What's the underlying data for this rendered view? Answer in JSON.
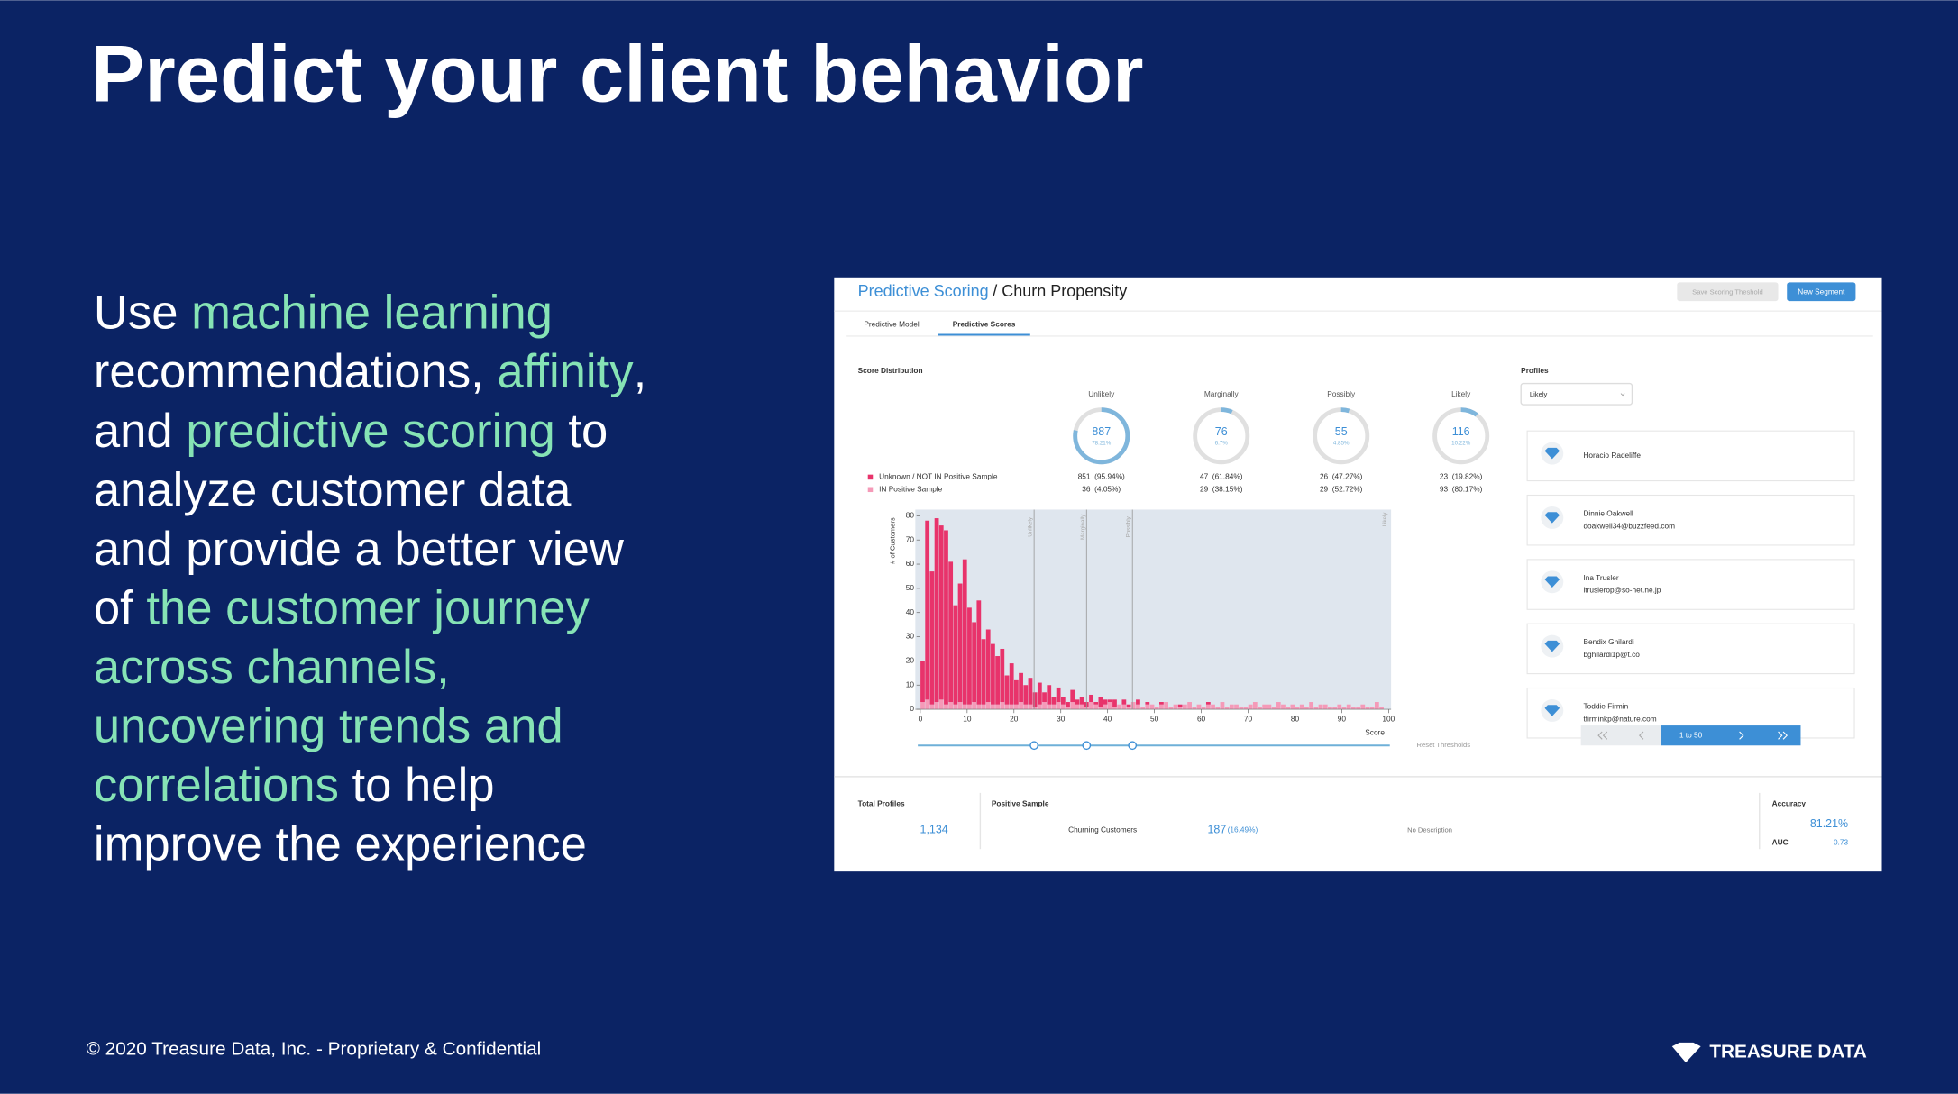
{
  "slide": {
    "title": "Predict your client behavior",
    "highlight_color": "#86e3b5",
    "text_color": "#ffffff",
    "body": {
      "lines": [
        [
          {
            "text": "Use ",
            "highlight": false
          },
          {
            "text": "machine learning",
            "highlight": true
          }
        ],
        [
          {
            "text": "recommendations, ",
            "highlight": false
          },
          {
            "text": "affinity",
            "highlight": true
          },
          {
            "text": ",",
            "highlight": false
          }
        ],
        [
          {
            "text": "and ",
            "highlight": false
          },
          {
            "text": "predictive scoring",
            "highlight": true
          },
          {
            "text": " to",
            "highlight": false
          }
        ],
        [
          {
            "text": "analyze customer data",
            "highlight": false
          }
        ],
        [
          {
            "text": "and provide a better view",
            "highlight": false
          }
        ],
        [
          {
            "text": "of ",
            "highlight": false
          },
          {
            "text": "the customer journey",
            "highlight": true
          }
        ],
        [
          {
            "text": "across channels,",
            "highlight": true
          }
        ],
        [
          {
            "text": "uncovering trends and",
            "highlight": true
          }
        ],
        [
          {
            "text": "correlations",
            "highlight": true
          },
          {
            "text": " to help",
            "highlight": false
          }
        ],
        [
          {
            "text": "improve the experience",
            "highlight": false
          }
        ]
      ]
    },
    "footer": "© 2020 Treasure Data, Inc. - Proprietary & Confidential",
    "logo": "TREASURE DATA"
  },
  "app": {
    "breadcrumb": {
      "parent": "Predictive Scoring",
      "current": "/ Churn Propensity"
    },
    "buttons": {
      "save": "Save Scoring Theshold",
      "new": "New Segment"
    },
    "tabs": [
      "Predictive Model",
      "Predictive Scores"
    ],
    "section": "Score Distribution",
    "scores": {
      "columns": [
        {
          "label": "Unlikely",
          "count": 887,
          "pct": {
            "value": 78.21,
            "label": "78.21%"
          },
          "unknown": "851  (95.94%)",
          "positive": "36  (4.05%)"
        },
        {
          "label": "Marginally",
          "count": 76,
          "pct": {
            "value": 6.7,
            "label": "6.7%"
          },
          "unknown": "47  (61.84%)",
          "positive": "29  (38.15%)"
        },
        {
          "label": "Possibly",
          "count": 55,
          "pct": {
            "value": 4.85,
            "label": "4.85%"
          },
          "unknown": "26  (47.27%)",
          "positive": "29  (52.72%)"
        },
        {
          "label": "Likely",
          "count": 116,
          "pct": {
            "value": 10.22,
            "label": "10.22%"
          },
          "unknown": "23  (19.82%)",
          "positive": "93  (80.17%)"
        }
      ]
    },
    "reset": "Reset Thresholds",
    "profiles": {
      "title": "Profiles",
      "filter": "Likely",
      "items": [
        {
          "name": "Horacio Radeliffe"
        },
        {
          "name": "Dinnie Oakwell",
          "email": "doakwell34@buzzfeed.com"
        },
        {
          "name": "Ina Trusler",
          "email": "itruslerop@so-net.ne.jp"
        },
        {
          "name": "Bendix Ghilardi",
          "email": "bghilardi1p@t.co"
        },
        {
          "name": "Toddie Firmin",
          "email": "tfirminkp@nature.com"
        }
      ],
      "page": "1 to 50"
    },
    "summary": {
      "total_label": "Total Profiles",
      "total": "1,134",
      "positive_label": "Positive Sample",
      "churn_label": "Churning Customers",
      "churn_count": 187,
      "churn_pct": "(16.49%)",
      "description": "No Description",
      "accuracy_label": "Accuracy",
      "accuracy": "81.21%",
      "auc_label": "AUC",
      "auc": 0.73
    }
  },
  "chart_data": {
    "type": "histogram",
    "stacked": true,
    "x_label": "Score",
    "y_label": "# of Customers",
    "bins": [
      0,
      1,
      2,
      3,
      4,
      5,
      6,
      7,
      8,
      9,
      10,
      11,
      12,
      13,
      14,
      15,
      16,
      17,
      18,
      19,
      20,
      21,
      22,
      23,
      24,
      25,
      26,
      27,
      28,
      29,
      30,
      31,
      32,
      33,
      34,
      35,
      36,
      37,
      38,
      39,
      40,
      41,
      42,
      43,
      44,
      45,
      46,
      47,
      48,
      49,
      50,
      51,
      52,
      53,
      54,
      55,
      56,
      57,
      58,
      59,
      60,
      61,
      62,
      63,
      64,
      65,
      66,
      67,
      68,
      69,
      70,
      71,
      72,
      73,
      74,
      75,
      76,
      77,
      78,
      79,
      80,
      81,
      82,
      83,
      84,
      85,
      86,
      87,
      88,
      89,
      90,
      91,
      92,
      93,
      94,
      95,
      96,
      97,
      98,
      99,
      100
    ],
    "series": [
      {
        "name": "Unknown / NOT IN Positive Sample",
        "color": "#e8336b",
        "values": [
          17,
          74,
          55,
          76,
          72,
          72,
          58,
          41,
          49,
          60,
          40,
          33,
          43,
          27,
          30,
          25,
          20,
          22,
          12,
          17,
          10,
          12,
          8,
          11,
          6,
          9,
          4,
          8,
          3,
          6,
          3,
          2,
          5,
          2,
          3,
          2,
          3,
          1,
          4,
          2,
          1,
          3,
          0,
          2,
          1,
          0,
          2,
          0,
          1,
          0,
          0,
          1,
          0,
          0,
          0,
          1,
          0,
          0,
          0,
          0,
          0,
          1,
          0,
          0,
          0,
          0,
          0,
          0,
          0,
          0,
          0,
          0,
          0,
          0,
          0,
          0,
          0,
          0,
          0,
          0,
          0,
          0,
          0,
          0,
          0,
          0,
          0,
          0,
          0,
          0,
          0,
          0,
          0,
          0,
          0,
          0,
          0,
          0,
          0,
          0
        ]
      },
      {
        "name": "IN Positive Sample",
        "color": "#f59ab8",
        "values": [
          3,
          4,
          2,
          3,
          4,
          2,
          3,
          2,
          3,
          2,
          2,
          3,
          2,
          2,
          3,
          2,
          2,
          3,
          2,
          2,
          2,
          3,
          2,
          2,
          1,
          2,
          3,
          2,
          2,
          3,
          2,
          1,
          3,
          2,
          2,
          1,
          3,
          2,
          1,
          2,
          3,
          1,
          2,
          2,
          1,
          3,
          2,
          1,
          2,
          2,
          1,
          2,
          3,
          1,
          2,
          1,
          2,
          3,
          1,
          2,
          1,
          2,
          2,
          1,
          3,
          1,
          2,
          2,
          1,
          1,
          2,
          3,
          1,
          2,
          2,
          1,
          3,
          2,
          1,
          2,
          1,
          2,
          1,
          3,
          1,
          2,
          2,
          1,
          1,
          2,
          1,
          2,
          1,
          1,
          2,
          1,
          1,
          3,
          1,
          0
        ]
      }
    ],
    "xlim": [
      0,
      100
    ],
    "ylim": [
      0,
      80
    ],
    "xticks": [
      0,
      10,
      20,
      30,
      40,
      50,
      60,
      70,
      80,
      90,
      100
    ],
    "yticks": [
      0,
      10,
      20,
      30,
      40,
      50,
      60,
      70,
      80
    ],
    "thresholds": [
      24.3,
      35.5,
      45.3
    ]
  }
}
